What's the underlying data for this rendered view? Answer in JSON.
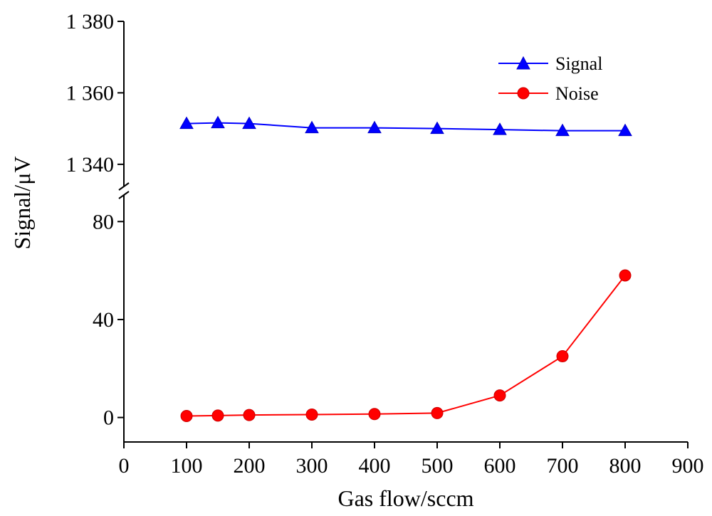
{
  "chart_data": {
    "type": "line",
    "title": "",
    "xlabel": "Gas flow/sccm",
    "ylabel": "Signal/μV",
    "xlim": [
      0,
      900
    ],
    "x_ticks": [
      0,
      100,
      200,
      300,
      400,
      500,
      600,
      700,
      800,
      900
    ],
    "y_axis_break": true,
    "upper_ylim": [
      1333,
      1380
    ],
    "upper_y_ticks": [
      1340,
      1360,
      1380
    ],
    "upper_y_tick_labels": [
      "1 340",
      "1 360",
      "1 380"
    ],
    "lower_ylim": [
      -10,
      92
    ],
    "lower_y_ticks": [
      0,
      40,
      80
    ],
    "lower_y_tick_labels": [
      "0",
      "40",
      "80"
    ],
    "grid": false,
    "legend_position": "top-right",
    "series": [
      {
        "name": "Signal",
        "color": "#0000ff",
        "marker": "triangle",
        "panel": "upper",
        "x": [
          100,
          150,
          200,
          300,
          400,
          500,
          600,
          700,
          800
        ],
        "y": [
          1351.4,
          1351.6,
          1351.4,
          1350.2,
          1350.2,
          1350.0,
          1349.7,
          1349.4,
          1349.4
        ]
      },
      {
        "name": "Noise",
        "color": "#ff0000",
        "marker": "circle",
        "panel": "lower",
        "x": [
          100,
          150,
          200,
          300,
          400,
          500,
          600,
          700,
          800
        ],
        "y": [
          0.6,
          0.8,
          1.0,
          1.2,
          1.4,
          1.8,
          9.0,
          25.0,
          58.0
        ]
      }
    ]
  }
}
